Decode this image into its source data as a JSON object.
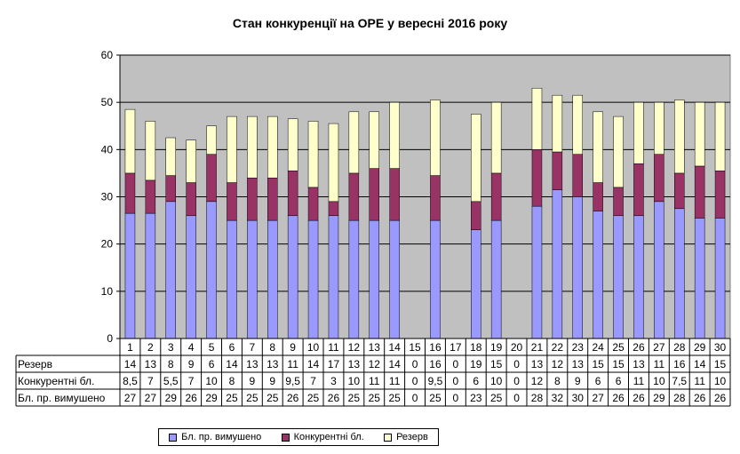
{
  "chart_data": {
    "type": "bar",
    "stacked": true,
    "title": "Стан конкуренції на ОРЕ  у вересні 2016 року",
    "categories": [
      "1",
      "2",
      "3",
      "4",
      "5",
      "6",
      "7",
      "8",
      "9",
      "10",
      "11",
      "12",
      "13",
      "14",
      "15",
      "16",
      "17",
      "18",
      "19",
      "20",
      "21",
      "22",
      "23",
      "24",
      "25",
      "26",
      "27",
      "28",
      "29",
      "30"
    ],
    "ylim": [
      0,
      60
    ],
    "yticks": [
      0,
      10,
      20,
      30,
      40,
      50,
      60
    ],
    "grid": true,
    "legend_position": "bottom",
    "series": [
      {
        "name": "Бл. пр. вимушено",
        "color": "#9999FF",
        "values": [
          26.5,
          26.5,
          29,
          26,
          29,
          25,
          25,
          25,
          26,
          25,
          26,
          25,
          25,
          25,
          0,
          25,
          0,
          23,
          25,
          0,
          28,
          31.5,
          30,
          27,
          26,
          26,
          29,
          27.5,
          25.5,
          25.5
        ],
        "labels": [
          "27",
          "27",
          "29",
          "26",
          "29",
          "25",
          "25",
          "25",
          "26",
          "25",
          "26",
          "25",
          "25",
          "25",
          "0",
          "25",
          "0",
          "23",
          "25",
          "0",
          "28",
          "32",
          "30",
          "27",
          "26",
          "26",
          "29",
          "28",
          "26",
          "26"
        ]
      },
      {
        "name": "Конкурентні бл.",
        "color": "#993366",
        "values": [
          8.5,
          7,
          5.5,
          7,
          10,
          8,
          9,
          9,
          9.5,
          7,
          3,
          10,
          11,
          11,
          0,
          9.5,
          0,
          6,
          10,
          0,
          12,
          8,
          9,
          6,
          6,
          11,
          10,
          7.5,
          11,
          10
        ],
        "labels": [
          "8,5",
          "7",
          "5,5",
          "7",
          "10",
          "8",
          "9",
          "9",
          "9,5",
          "7",
          "3",
          "10",
          "11",
          "11",
          "0",
          "9,5",
          "0",
          "6",
          "10",
          "0",
          "12",
          "8",
          "9",
          "6",
          "6",
          "11",
          "10",
          "7,5",
          "11",
          "10"
        ]
      },
      {
        "name": "Резерв",
        "color": "#FFFFCC",
        "values": [
          13.5,
          12.5,
          8,
          9,
          6,
          14,
          13,
          13,
          11,
          14,
          16.5,
          13,
          12,
          14,
          0,
          16,
          0,
          18.5,
          15,
          0,
          13,
          12,
          12.5,
          15,
          15,
          13,
          11,
          15.5,
          13.5,
          14.5
        ],
        "labels": [
          "14",
          "13",
          "8",
          "9",
          "6",
          "14",
          "13",
          "13",
          "11",
          "14",
          "17",
          "13",
          "12",
          "14",
          "0",
          "16",
          "0",
          "19",
          "15",
          "0",
          "13",
          "12",
          "13",
          "15",
          "15",
          "13",
          "11",
          "16",
          "14",
          "15"
        ]
      }
    ]
  }
}
